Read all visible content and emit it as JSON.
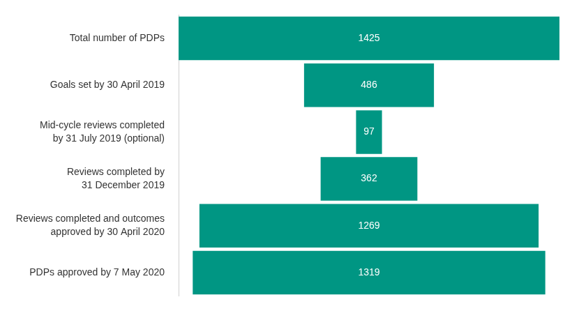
{
  "chart_data": {
    "type": "bar",
    "orientation": "horizontal",
    "categories": [
      "Total number of PDPs",
      "Goals set by 30 April 2019",
      "Mid-cycle reviews completed\nby 31 July 2019 (optional)",
      "Reviews completed by\n31 December 2019",
      "Reviews completed and outcomes\napproved by 30 April 2020",
      "PDPs approved by 7 May 2020"
    ],
    "values": [
      1425,
      486,
      97,
      362,
      1269,
      1319
    ],
    "color": "#009683",
    "data_labels": true,
    "tick_labels": "y",
    "grid": false
  }
}
